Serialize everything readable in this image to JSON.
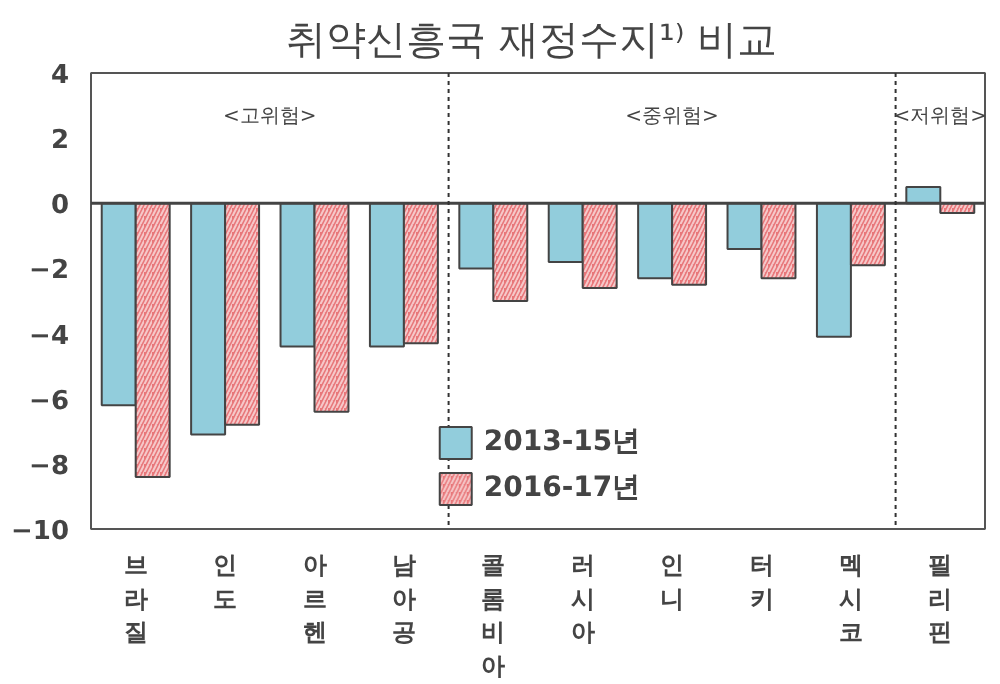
{
  "chart_data": {
    "type": "bar",
    "title": "취약신흥국  재정수지¹⁾ 비교",
    "categories": [
      "브라질",
      "인도",
      "아르헨",
      "남아공",
      "콜롬비아",
      "러시아",
      "인니",
      "터키",
      "멕시코",
      "필리핀"
    ],
    "series": [
      {
        "name": "2013-15년",
        "color": "#92cddc",
        "values": [
          -6.2,
          -7.1,
          -4.4,
          -4.4,
          -2.0,
          -1.8,
          -2.3,
          -1.4,
          -4.1,
          0.5
        ]
      },
      {
        "name": "2016-17년",
        "color": "#e8777a",
        "values": [
          -8.4,
          -6.8,
          -6.4,
          -4.3,
          -3.0,
          -2.6,
          -2.5,
          -2.3,
          -1.9,
          -0.3
        ]
      }
    ],
    "ylim": [
      -10,
      4
    ],
    "yticks": [
      -10,
      -8,
      -6,
      -4,
      -2,
      0,
      2,
      4
    ],
    "annotations": [
      "<고위험>",
      "<중위험>",
      "<저위험>"
    ],
    "grid": false,
    "legend": "bottom"
  }
}
